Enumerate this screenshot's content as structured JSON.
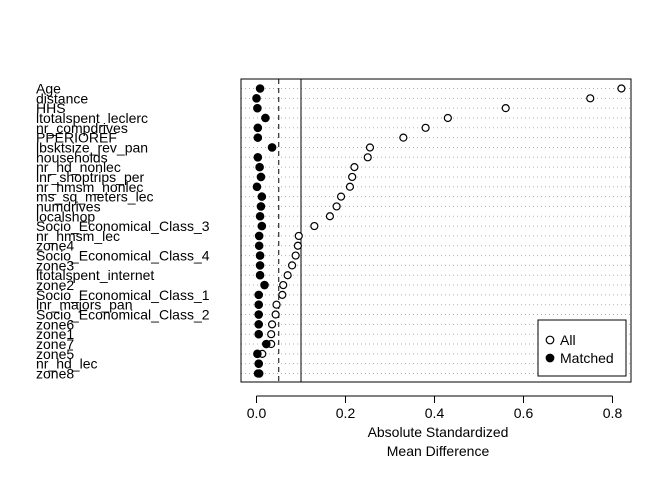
{
  "chart_data": {
    "type": "scatter",
    "xlabel_line1": "Absolute Standardized",
    "xlabel_line2": "Mean Difference",
    "xlim": [
      -0.02,
      0.85
    ],
    "xticks": [
      0.0,
      0.2,
      0.4,
      0.6,
      0.8
    ],
    "xtick_labels": [
      "0.0",
      "0.2",
      "0.4",
      "0.6",
      "0.8"
    ],
    "reference_lines": [
      {
        "x": 0.05,
        "style": "dashed"
      },
      {
        "x": 0.1,
        "style": "solid"
      }
    ],
    "grid": "dotted horizontal",
    "legend_position": "bottom-right",
    "series": [
      {
        "name": "All",
        "marker": "open-circle"
      },
      {
        "name": "Matched",
        "marker": "filled-circle"
      }
    ],
    "covariates": [
      {
        "label": "Age",
        "all": 0.82,
        "matched": 0.008
      },
      {
        "label": "distance",
        "all": 0.75,
        "matched": 0.0
      },
      {
        "label": "HHS",
        "all": 0.56,
        "matched": 0.002
      },
      {
        "label": "ltotalspent_leclerc",
        "all": 0.43,
        "matched": 0.02
      },
      {
        "label": "nr_compdrives",
        "all": 0.38,
        "matched": 0.003
      },
      {
        "label": "PPERIOREF",
        "all": 0.33,
        "matched": 0.003
      },
      {
        "label": "lbsktsize_rev_pan",
        "all": 0.255,
        "matched": 0.035
      },
      {
        "label": "households",
        "all": 0.25,
        "matched": 0.003
      },
      {
        "label": "nr_hd_nonlec",
        "all": 0.22,
        "matched": 0.007
      },
      {
        "label": "lnr_shoptrips_per",
        "all": 0.215,
        "matched": 0.01
      },
      {
        "label": "nr_hmsm_nonlec",
        "all": 0.21,
        "matched": 0.001
      },
      {
        "label": "ms_sq_meters_lec",
        "all": 0.19,
        "matched": 0.012
      },
      {
        "label": "numdrives",
        "all": 0.18,
        "matched": 0.01
      },
      {
        "label": "localshop",
        "all": 0.165,
        "matched": 0.008
      },
      {
        "label": "Socio_Economical_Class_3",
        "all": 0.13,
        "matched": 0.012
      },
      {
        "label": "nr_hmsm_lec",
        "all": 0.095,
        "matched": 0.006
      },
      {
        "label": "zone4",
        "all": 0.093,
        "matched": 0.006
      },
      {
        "label": "Socio_Economical_Class_4",
        "all": 0.088,
        "matched": 0.008
      },
      {
        "label": "zone3",
        "all": 0.08,
        "matched": 0.008
      },
      {
        "label": "ltotalspent_internet",
        "all": 0.07,
        "matched": 0.008
      },
      {
        "label": "zone2",
        "all": 0.06,
        "matched": 0.018
      },
      {
        "label": "Socio_Economical_Class_1",
        "all": 0.058,
        "matched": 0.005
      },
      {
        "label": "lnr_majors_pan",
        "all": 0.045,
        "matched": 0.005
      },
      {
        "label": "Socio_Economical_Class_2",
        "all": 0.043,
        "matched": 0.005
      },
      {
        "label": "zone6",
        "all": 0.035,
        "matched": 0.005
      },
      {
        "label": "zone1",
        "all": 0.033,
        "matched": 0.005
      },
      {
        "label": "zone7",
        "all": 0.033,
        "matched": 0.022
      },
      {
        "label": "zone5",
        "all": 0.013,
        "matched": 0.002
      },
      {
        "label": "nr_hd_lec",
        "all": 0.005,
        "matched": 0.005
      },
      {
        "label": "zone8",
        "all": 0.003,
        "matched": 0.006
      }
    ]
  }
}
